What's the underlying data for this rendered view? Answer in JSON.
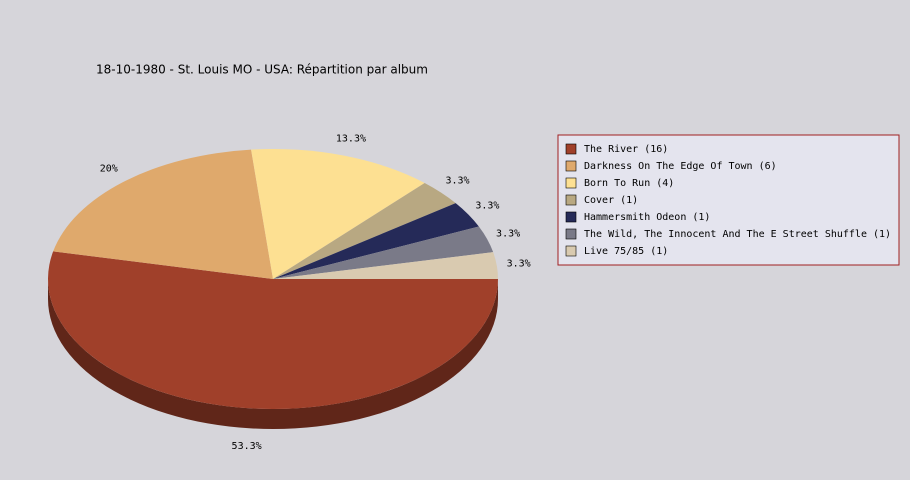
{
  "chart_data": {
    "type": "pie",
    "title": "18-10-1980 - St. Louis MO - USA:  Répartition par album",
    "categories": [
      "The River (16)",
      "Darkness On The Edge Of Town (6)",
      "Born To Run (4)",
      "Cover (1)",
      "Hammersmith Odeon  (1)",
      "The Wild, The Innocent And The E Street Shuffle (1)",
      "Live 75/85 (1)"
    ],
    "values": [
      53.3,
      20,
      13.3,
      3.3,
      3.3,
      3.3,
      3.3
    ],
    "value_labels": [
      "53.3%",
      "20%",
      "13.3%",
      "3.3%",
      "3.3%",
      "3.3%",
      "3.3%"
    ],
    "colors": [
      "#a0402a",
      "#dfa96c",
      "#fde092",
      "#b8a882",
      "#252a58",
      "#7a7a88",
      "#d9cab0"
    ],
    "legend": "right"
  }
}
